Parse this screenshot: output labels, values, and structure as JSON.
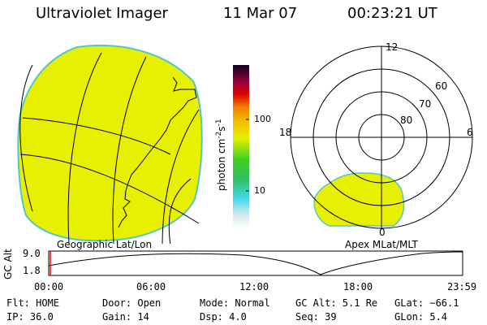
{
  "header": {
    "title": "Ultraviolet Imager",
    "date": "11 Mar 07",
    "time": "00:23:21 UT"
  },
  "colorbar": {
    "label": "photon cm",
    "exp1": "-2",
    "mid": "s",
    "exp2": "-1",
    "ticks": [
      "100",
      "10"
    ]
  },
  "geo_map": {
    "caption": "Geographic Lat/Lon",
    "fill_color": "#e6f000"
  },
  "polar_plot": {
    "caption": "Apex MLat/MLT",
    "mlt_labels": [
      "12",
      "18",
      "6",
      "0"
    ],
    "lat_labels": [
      "60",
      "70",
      "80"
    ],
    "fill_color": "#e6f000"
  },
  "altitude_plot": {
    "ylabel": "GC Alt",
    "yticks": [
      "9.0",
      "1.8"
    ],
    "xticks": [
      "00:00",
      "06:00",
      "12:00",
      "18:00",
      "23:59"
    ],
    "marker_color": "#ff0000"
  },
  "info": {
    "flt": "Flt: HOME",
    "ip": "IP: 36.0",
    "door": "Door: Open",
    "gain": "Gain: 14",
    "mode": "Mode: Normal",
    "dsp": "Dsp:     4.0",
    "gcalt": "GC Alt: 5.1 Re",
    "seq": "Seq: 39",
    "glat": "GLat: −66.1",
    "glon": "GLon:    5.4"
  }
}
